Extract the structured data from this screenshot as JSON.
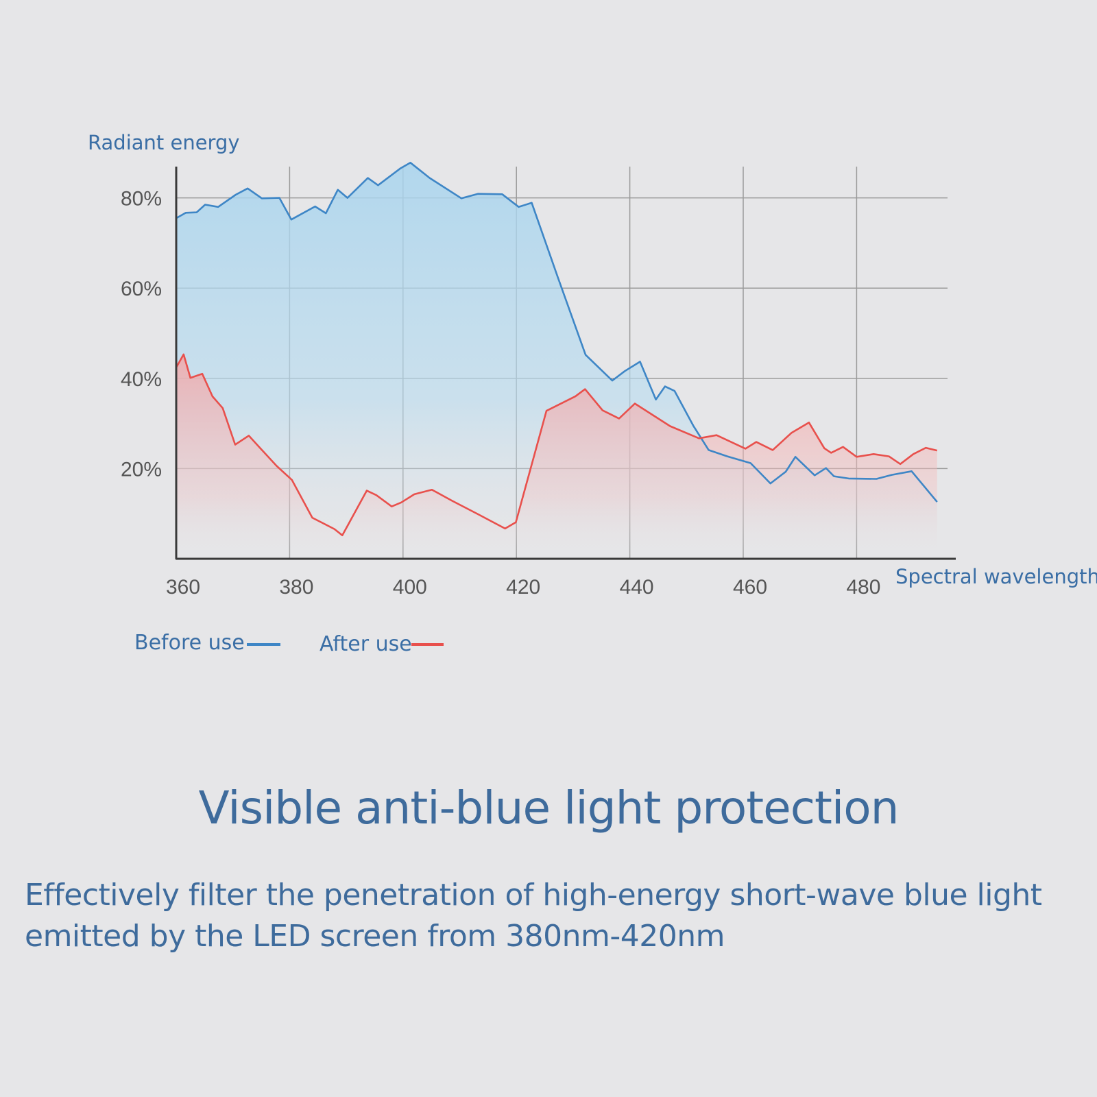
{
  "chart_data": {
    "type": "area",
    "ylabel": "Radiant energy",
    "xlabel": "Spectral wavelength",
    "xlim": [
      360,
      496
    ],
    "ylim": [
      0,
      90
    ],
    "x_ticks": [
      "360",
      "380",
      "400",
      "420",
      "440",
      "460",
      "480"
    ],
    "x_tick_values": [
      360,
      380,
      400,
      420,
      440,
      460,
      480
    ],
    "y_ticks": [
      "20%",
      "40%",
      "60%",
      "80%"
    ],
    "y_tick_values": [
      20,
      40,
      60,
      80
    ],
    "grid": true,
    "series": [
      {
        "name": "Before use",
        "color": "#3e86c6",
        "fill": "#a8d4ee",
        "x": [
          360,
          361.7,
          363.6,
          365.1,
          367.4,
          370.5,
          372.6,
          375.1,
          378.2,
          380.3,
          384.5,
          386.4,
          388.5,
          390.2,
          393.8,
          395.6,
          399.5,
          401.3,
          404.7,
          410.3,
          413.2,
          417.5,
          420.4,
          422.7,
          427.3,
          432.2,
          436.9,
          439.1,
          441.8,
          444.6,
          446.2,
          447.9,
          451.2,
          453.9,
          457.2,
          461.3,
          464.8,
          467.5,
          469.2,
          472.6,
          474.6,
          476.0,
          478.6,
          483.5,
          486.2,
          489.7,
          494.2
        ],
        "values": [
          75.5,
          76.7,
          76.8,
          78.5,
          78.0,
          80.7,
          82.1,
          79.9,
          80.0,
          75.2,
          78.1,
          76.6,
          81.8,
          80.0,
          84.4,
          82.8,
          86.5,
          87.8,
          84.4,
          79.9,
          80.9,
          80.8,
          78.0,
          78.9,
          62.4,
          45.2,
          39.5,
          41.6,
          43.7,
          35.3,
          38.2,
          37.2,
          29.5,
          24.1,
          22.7,
          21.2,
          16.7,
          19.3,
          22.6,
          18.5,
          20.1,
          18.3,
          17.8,
          17.7,
          18.6,
          19.4,
          12.6
        ]
      },
      {
        "name": "After use",
        "color": "#e8504c",
        "fill": "#f2a7a8",
        "x": [
          360,
          361.3,
          362.5,
          364.6,
          366.4,
          368.2,
          370.4,
          372.8,
          374.9,
          377.7,
          380.4,
          384.0,
          387.9,
          389.3,
          393.6,
          395.3,
          398.0,
          399.7,
          402.0,
          405.1,
          408.6,
          413.2,
          418.0,
          419.9,
          425.3,
          430.4,
          432.1,
          435.2,
          438.1,
          440.9,
          447.1,
          452.2,
          455.3,
          460.4,
          462.3,
          465.2,
          468.5,
          471.6,
          474.3,
          475.5,
          477.6,
          480.0,
          483.0,
          485.7,
          487.7,
          490.0,
          492.2,
          494.2
        ],
        "values": [
          42.4,
          45.3,
          40.1,
          41.0,
          36.0,
          33.4,
          25.3,
          27.3,
          24.4,
          20.6,
          17.5,
          9.1,
          6.6,
          5.2,
          15.1,
          14.1,
          11.6,
          12.5,
          14.3,
          15.3,
          12.9,
          9.9,
          6.7,
          8.1,
          32.8,
          36.0,
          37.6,
          32.9,
          31.1,
          34.4,
          29.4,
          26.7,
          27.4,
          24.4,
          25.9,
          24.1,
          27.9,
          30.2,
          24.5,
          23.5,
          24.8,
          22.6,
          23.2,
          22.7,
          21.0,
          23.2,
          24.6,
          24.0
        ]
      }
    ],
    "legend_placement": "bottom-left"
  },
  "headline": "Visible anti-blue light protection",
  "subtext": "Effectively filter the penetration of high-energy short-wave blue light emitted by the LED screen from 380nm-420nm"
}
